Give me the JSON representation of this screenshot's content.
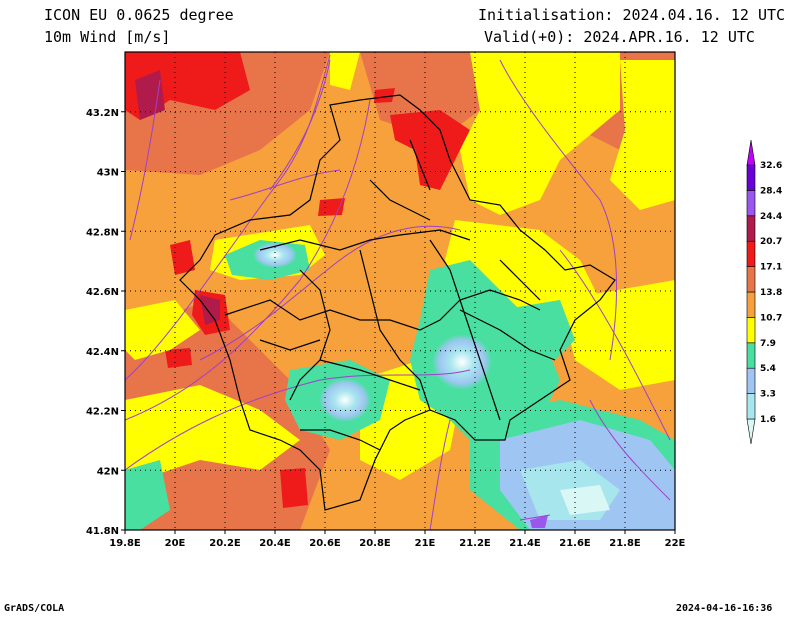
{
  "header": {
    "model": "ICON EU 0.0625 degree",
    "variable": "10m Wind [m/s]",
    "init": "Initialisation: 2024.04.16. 12 UTC",
    "valid": "Valid(+0): 2024.APR.16. 12 UTC"
  },
  "map": {
    "lon_range": [
      19.8,
      22.0
    ],
    "lat_range": [
      41.8,
      43.4
    ],
    "x_ticks": [
      "19.8E",
      "20E",
      "20.2E",
      "20.4E",
      "20.6E",
      "20.8E",
      "21E",
      "21.2E",
      "21.4E",
      "21.6E",
      "21.8E",
      "22E"
    ],
    "y_ticks": [
      "41.8N",
      "42N",
      "42.2N",
      "42.4N",
      "42.6N",
      "42.8N",
      "43N",
      "43.2N"
    ],
    "grid": "dotted",
    "overlays": [
      "wind speed shading",
      "streamlines",
      "administrative borders"
    ]
  },
  "colorbar": {
    "levels": [
      "1.6",
      "3.3",
      "5.4",
      "7.9",
      "10.7",
      "13.8",
      "17.1",
      "20.7",
      "24.4",
      "28.4",
      "32.6"
    ],
    "colors": [
      "#d9f7f5",
      "#a8e6ee",
      "#9fc6f2",
      "#48dfa0",
      "#ffff00",
      "#f6a13c",
      "#e8744a",
      "#ef1b1b",
      "#b01b4c",
      "#9a56ef",
      "#6a00d8",
      "#c000ff"
    ]
  },
  "footer": {
    "left": "GrADS/COLA",
    "right": "2024-04-16-16:36"
  }
}
